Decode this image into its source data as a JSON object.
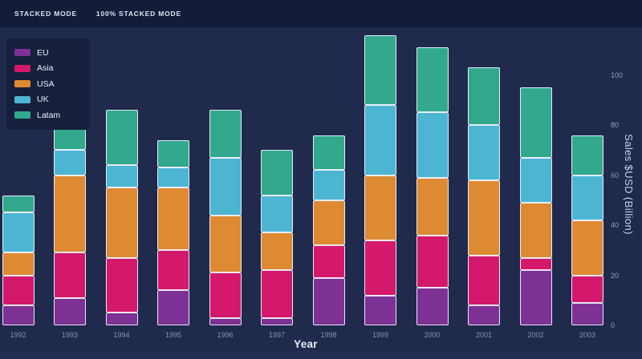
{
  "toolbar": {
    "buttons": [
      {
        "label": "STACKED MODE"
      },
      {
        "label": "100% STACKED MODE"
      }
    ]
  },
  "theme": {
    "background": "#1f2a4d",
    "topbar_background": "#131c38",
    "legend_background": "#16203c",
    "segment_border": "rgba(240,240,252,0.95)",
    "tick_color": "#97a0ba",
    "axis_title_color": "#ccd3e3",
    "button_text_color": "#dde5f2"
  },
  "chart_data": {
    "type": "bar",
    "stacked": true,
    "title": "",
    "xlabel": "Year",
    "ylabel": "Sales $USD (Billion)",
    "categories": [
      "1992",
      "1993",
      "1994",
      "1995",
      "1996",
      "1997",
      "1998",
      "1999",
      "2000",
      "2001",
      "2002",
      "2003"
    ],
    "series": [
      {
        "name": "EU",
        "color": "#7e3195",
        "values": [
          8,
          11,
          5,
          14,
          3,
          3,
          19,
          12,
          15,
          8,
          22,
          9
        ]
      },
      {
        "name": "Asia",
        "color": "#d4196c",
        "values": [
          12,
          18,
          22,
          16,
          18,
          19,
          13,
          22,
          21,
          20,
          5,
          11
        ]
      },
      {
        "name": "USA",
        "color": "#dd8a33",
        "values": [
          9,
          31,
          28,
          25,
          23,
          15,
          18,
          26,
          23,
          30,
          22,
          22
        ]
      },
      {
        "name": "UK",
        "color": "#4cb6d2",
        "values": [
          16,
          10,
          9,
          8,
          23,
          15,
          12,
          28,
          26,
          22,
          18,
          18
        ]
      },
      {
        "name": "Latam",
        "color": "#32a98c",
        "values": [
          7,
          24,
          22,
          11,
          19,
          18,
          14,
          28,
          26,
          23,
          28,
          16
        ]
      }
    ],
    "stack_order_bottom_to_top": [
      "EU",
      "Asia",
      "USA",
      "UK",
      "Latam"
    ],
    "yticks": [
      0,
      20,
      40,
      60,
      80,
      100
    ],
    "ylim": [
      0,
      118
    ],
    "grid": false,
    "legend_position": "top-left",
    "y_axis_side": "right"
  }
}
